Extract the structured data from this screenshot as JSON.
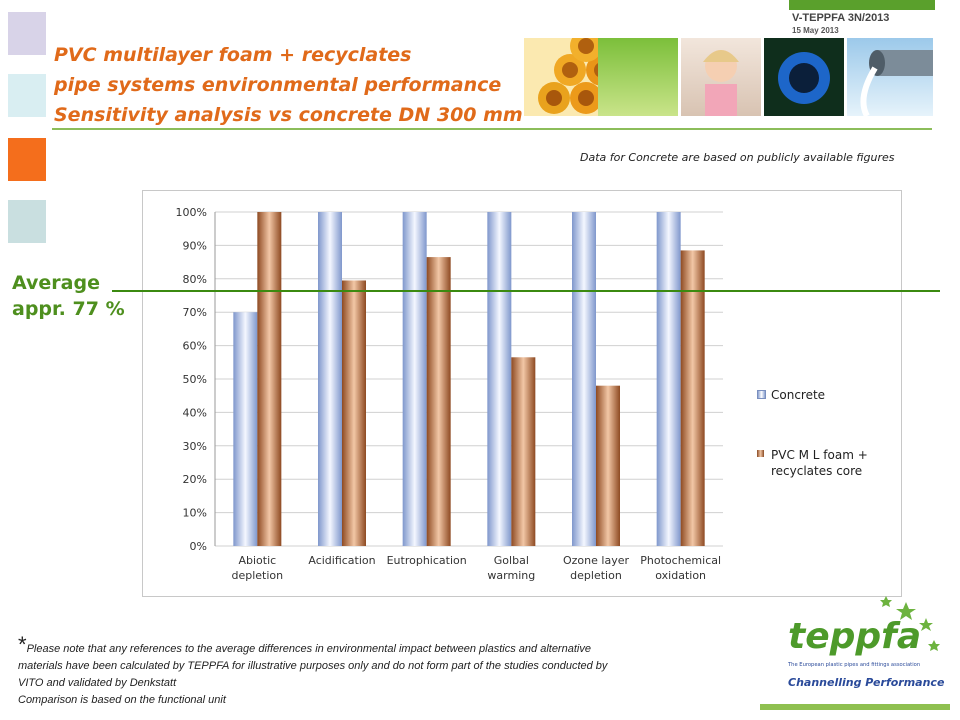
{
  "header": {
    "doc_code": "V-TEPPFA 3N/2013",
    "doc_date": "15 May 2013",
    "title_lines": [
      "PVC multilayer foam + recyclates",
      "pipe systems environmental performance",
      "Sensitivity analysis vs concrete DN 300 mm"
    ]
  },
  "note_top": "Data for Concrete are based on publicly available figures",
  "average": {
    "line1": "Average",
    "line2": "appr. 77 %"
  },
  "colors": {
    "accent": "#e06a1a",
    "concrete": "#aebfe0",
    "pvc": "#b86a3a",
    "average_line": "#3b8a10"
  },
  "chart_data": {
    "type": "bar",
    "categories": [
      [
        "Abiotic",
        "depletion"
      ],
      [
        "Acidification"
      ],
      [
        "Eutrophication"
      ],
      [
        "Golbal",
        "warming"
      ],
      [
        "Ozone layer",
        "depletion"
      ],
      [
        "Photochemical",
        "oxidation"
      ]
    ],
    "series": [
      {
        "name": "Concrete",
        "values": [
          70,
          100,
          100,
          100,
          100,
          100
        ]
      },
      {
        "name": "PVC M L foam + recyclates core",
        "values": [
          100,
          79.5,
          86.5,
          56.5,
          48,
          88.5
        ]
      }
    ],
    "ylim": [
      0,
      100
    ],
    "yticks": [
      "0%",
      "10%",
      "20%",
      "30%",
      "40%",
      "50%",
      "60%",
      "70%",
      "80%",
      "90%",
      "100%"
    ],
    "legend_position": "right",
    "grid": true
  },
  "legend": {
    "concrete": "Concrete",
    "pvc": [
      "PVC M L foam +",
      "recyclates core"
    ]
  },
  "footnote": {
    "star": "*",
    "line1": "Please note that any references to the average differences in environmental impact between plastics and alternative",
    "line2": "materials have been calculated by TEPPFA for illustrative purposes only and do not form part of the studies conducted by",
    "line3": "VITO and validated by Denkstatt",
    "line4": "Comparison is based on the functional unit"
  },
  "logo": {
    "name": "teppfa",
    "tagline": "The European plastic pipes and fittings association",
    "slogan": "Channelling Performance"
  }
}
